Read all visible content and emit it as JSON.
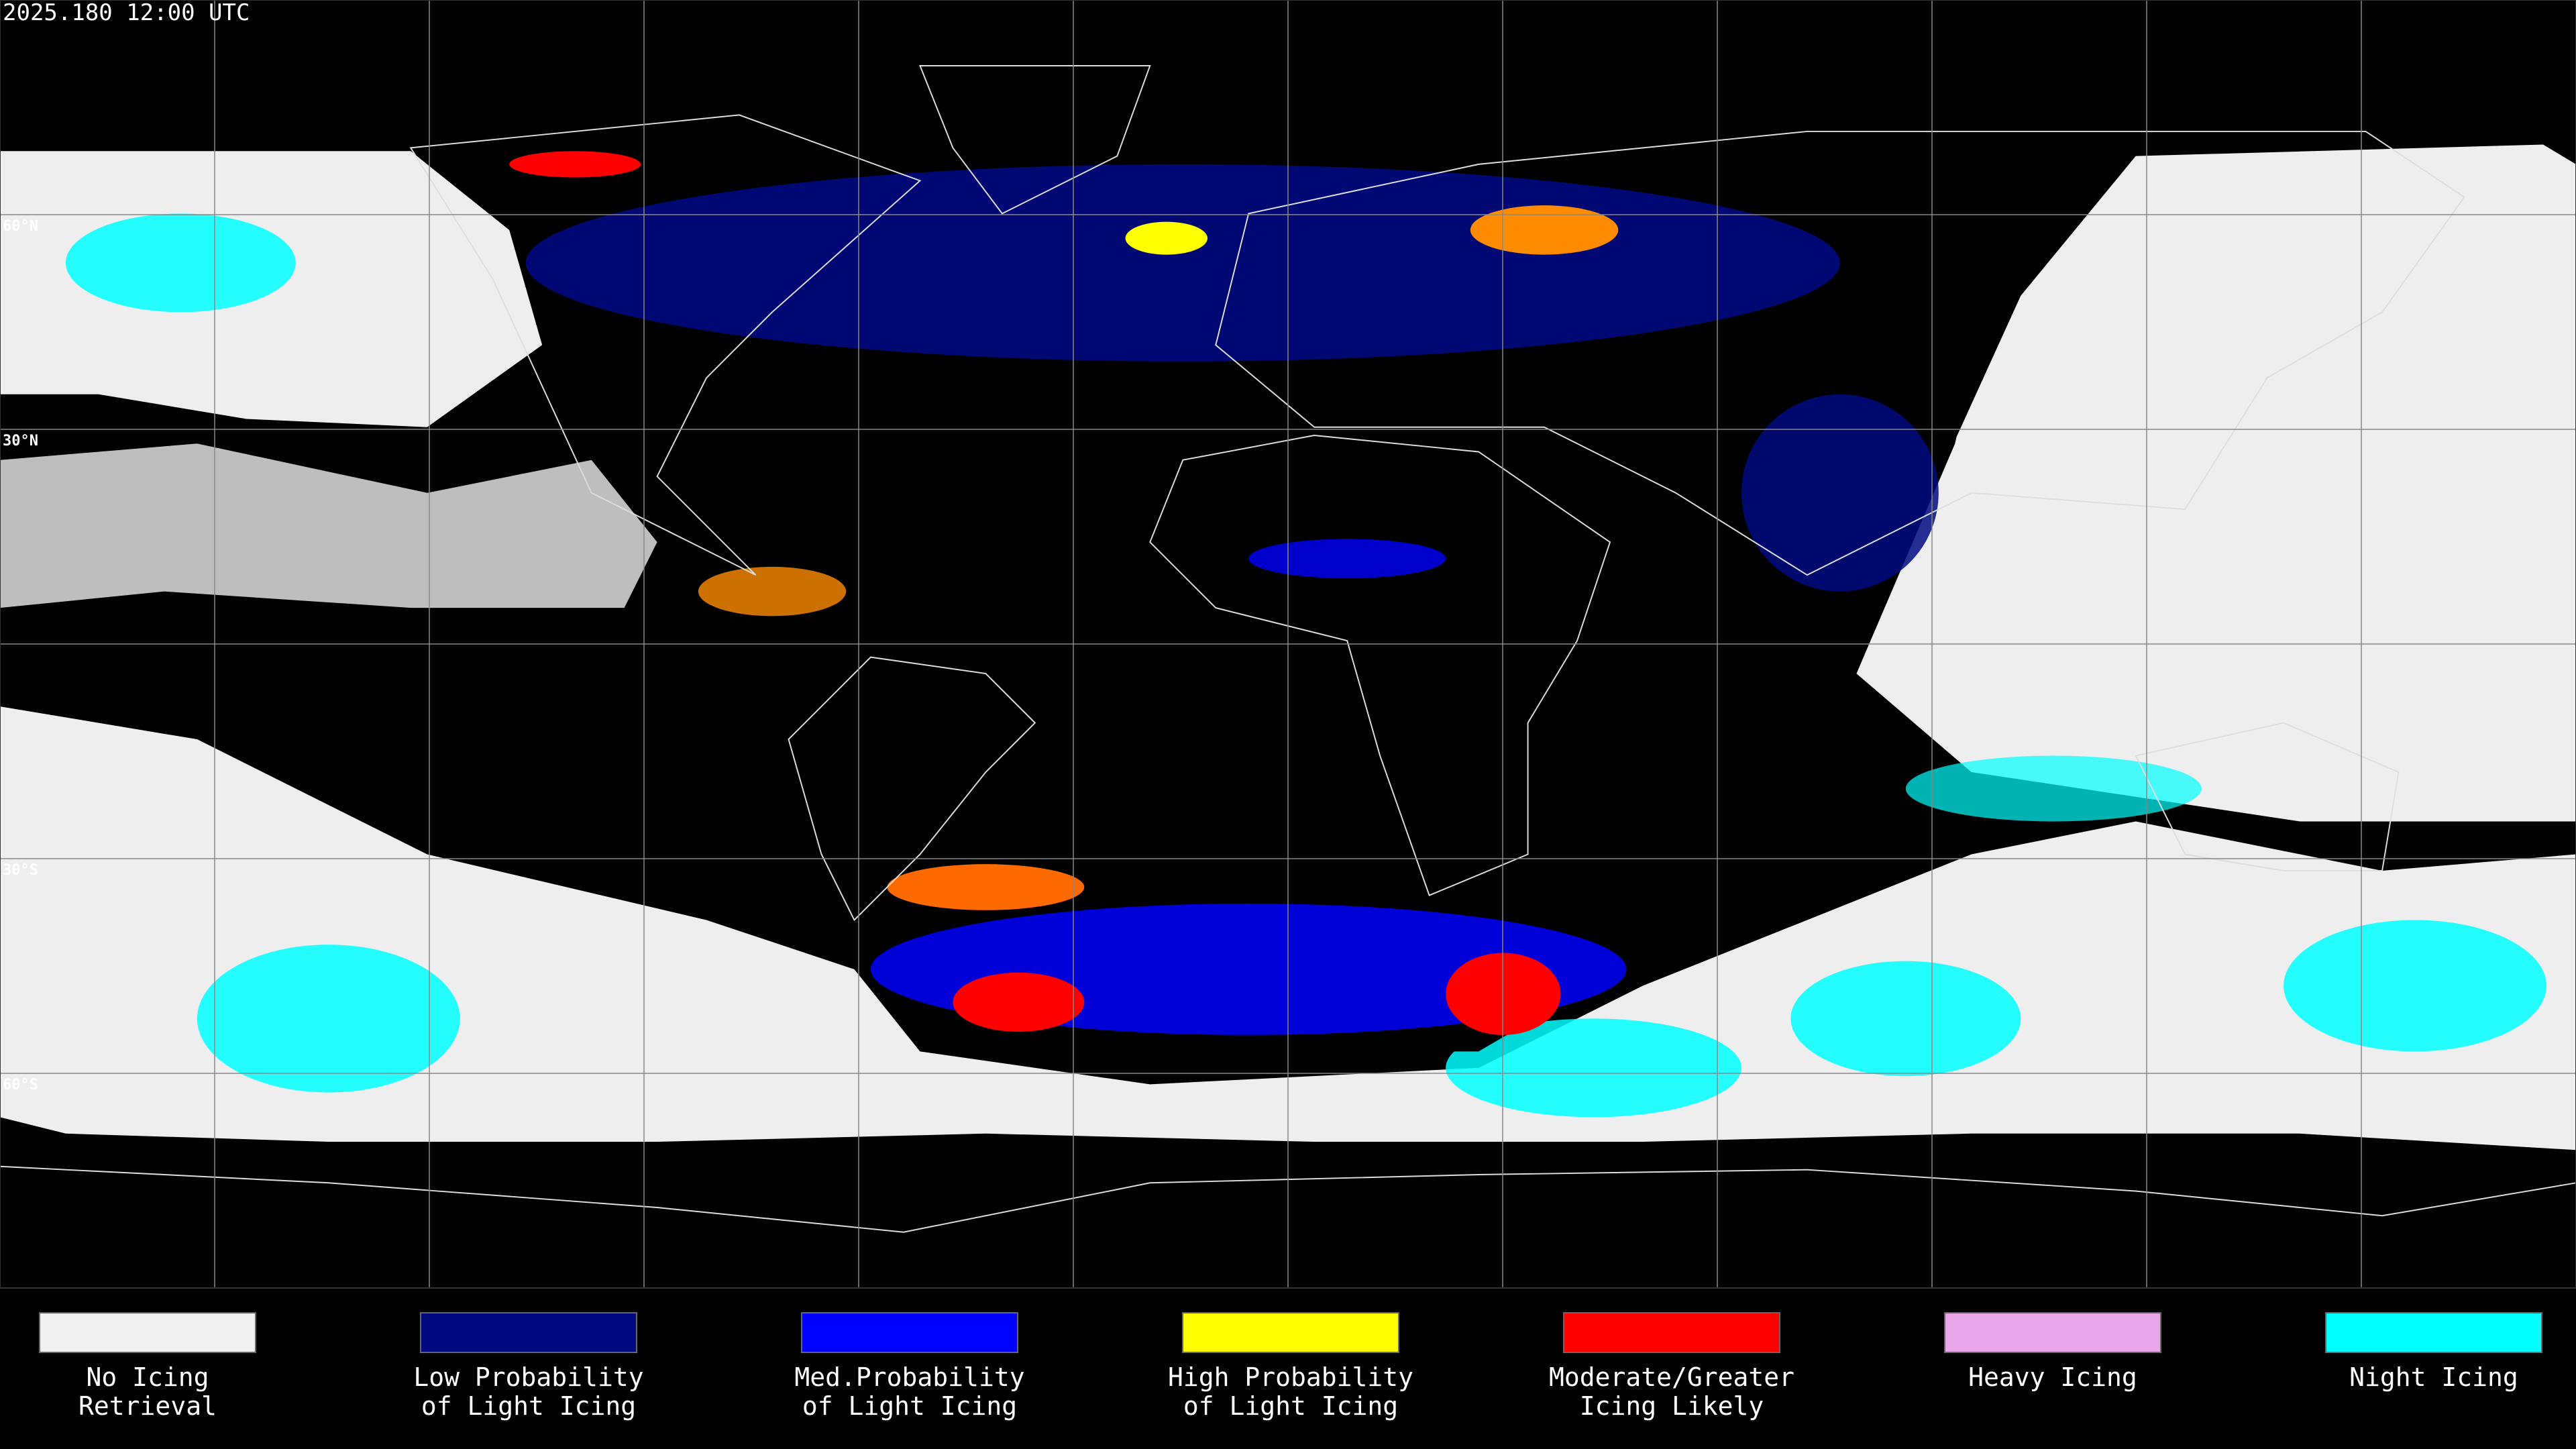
{
  "header": {
    "title": "2025.180 12:00 UTC"
  },
  "map": {
    "lat_labels": [
      "60°N",
      "30°N",
      "30°S",
      "60°S"
    ]
  },
  "legend": {
    "items": [
      {
        "label": [
          "No Icing",
          "Retrieval"
        ],
        "color": "#f0f0f0"
      },
      {
        "label": [
          "Low Probability",
          "of Light Icing"
        ],
        "color": "#000a80"
      },
      {
        "label": [
          "Med.Probability",
          "of Light Icing"
        ],
        "color": "#0000ff"
      },
      {
        "label": [
          "High Probability",
          "of Light Icing"
        ],
        "color": "#ffff00"
      },
      {
        "label": [
          "Moderate/Greater",
          "Icing Likely"
        ],
        "color": "#ff0000"
      },
      {
        "label": [
          "Heavy Icing"
        ],
        "color": "#e8a6e8"
      },
      {
        "label": [
          "Night Icing"
        ],
        "color": "#00ffff"
      }
    ]
  }
}
